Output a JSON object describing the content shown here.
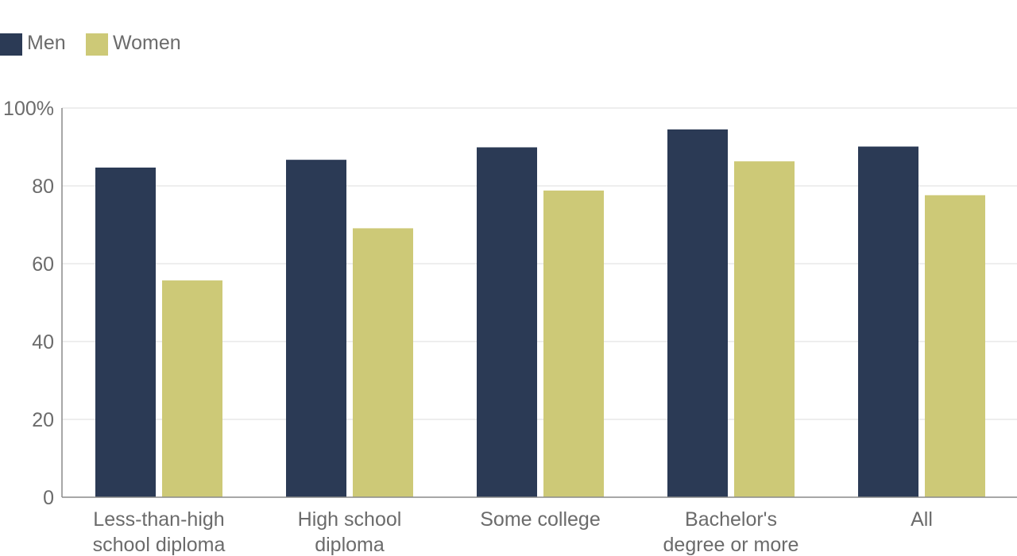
{
  "chart_data": {
    "type": "bar",
    "categories": [
      [
        "Less-than-high",
        "school diploma"
      ],
      [
        "High school",
        "diploma"
      ],
      [
        "Some college"
      ],
      [
        "Bachelor's",
        "degree or more"
      ],
      [
        "All"
      ]
    ],
    "series": [
      {
        "name": "Men",
        "color": "#2b3a55",
        "values": [
          84.7,
          86.7,
          89.9,
          94.5,
          90.1
        ]
      },
      {
        "name": "Women",
        "color": "#cdc977",
        "values": [
          55.7,
          69.1,
          78.8,
          86.3,
          77.6
        ]
      }
    ],
    "yticks": [
      "0",
      "20",
      "40",
      "60",
      "80",
      "100%"
    ],
    "ytick_values": [
      0,
      20,
      40,
      60,
      80,
      100
    ],
    "ylim": [
      0,
      100
    ],
    "grid": true,
    "legend": "top-left"
  }
}
